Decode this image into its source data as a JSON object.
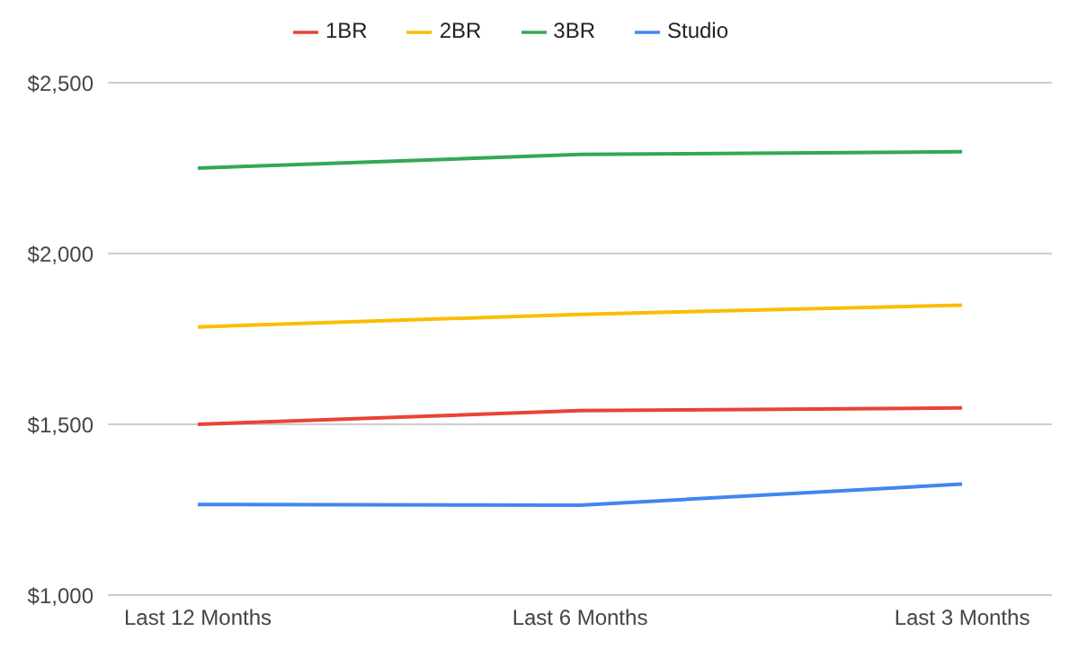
{
  "chart_data": {
    "type": "line",
    "categories": [
      "Last 12 Months",
      "Last 6 Months",
      "Last 3 Months"
    ],
    "series": [
      {
        "name": "Studio",
        "color": "#4285f4",
        "values": [
          1265,
          1263,
          1325
        ]
      },
      {
        "name": "1BR",
        "color": "#ea4335",
        "values": [
          1500,
          1540,
          1548
        ]
      },
      {
        "name": "2BR",
        "color": "#fbbc04",
        "values": [
          1785,
          1822,
          1849
        ]
      },
      {
        "name": "3BR",
        "color": "#34a853",
        "values": [
          2250,
          2290,
          2298
        ]
      }
    ],
    "ylim": [
      1000,
      2500
    ],
    "yticks": [
      {
        "value": 1000,
        "label": "$1,000"
      },
      {
        "value": 1500,
        "label": "$1,500"
      },
      {
        "value": 2000,
        "label": "$2,000"
      },
      {
        "value": 2500,
        "label": "$2,500"
      }
    ],
    "grid": "y",
    "legend": "top"
  }
}
